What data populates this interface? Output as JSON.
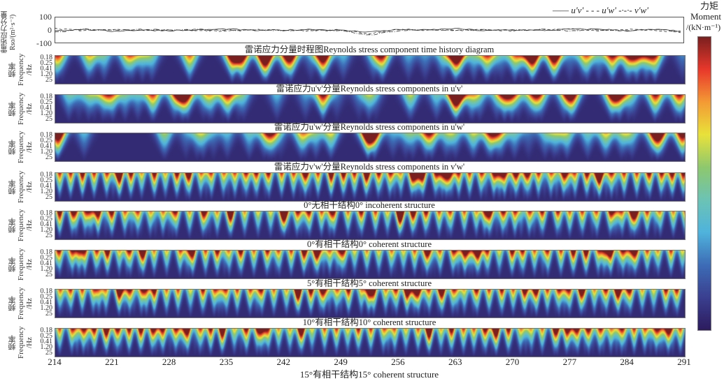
{
  "chart_data": [
    {
      "type": "line",
      "ylabel": "雷诺应力分量 Rso/(m²·s⁻²)",
      "ylim": [
        -100,
        100
      ],
      "yticks": [
        "100",
        "0",
        "-100"
      ],
      "xlim": [
        214,
        291
      ],
      "legend": {
        "placement": "top-right",
        "entries": [
          {
            "name": "u'v'",
            "style": "solid"
          },
          {
            "name": "u'w'",
            "style": "dashed"
          },
          {
            "name": "v'w'",
            "style": "dash-dot"
          }
        ]
      },
      "series": [
        {
          "name": "u'v'",
          "x": [
            214,
            217.5,
            221,
            224.5,
            228,
            231.5,
            235,
            238.5,
            242,
            245.5,
            249,
            252.5,
            256,
            259.5,
            263,
            266.5,
            270,
            273.5,
            277,
            280.5,
            284,
            287.5,
            291
          ],
          "y": [
            -5,
            5,
            -10,
            0,
            -5,
            0,
            8,
            -4,
            -2,
            6,
            -3,
            -15,
            4,
            0,
            12,
            -6,
            2,
            -4,
            6,
            8,
            -6,
            4,
            -10
          ]
        },
        {
          "name": "u'w'",
          "x": [
            214,
            217.5,
            221,
            224.5,
            228,
            231.5,
            235,
            238.5,
            242,
            245.5,
            249,
            252.5,
            256,
            259.5,
            263,
            266.5,
            270,
            273.5,
            277,
            280.5,
            284,
            287.5,
            291
          ],
          "y": [
            10,
            -5,
            4,
            -3,
            2,
            -6,
            -10,
            3,
            -4,
            -8,
            2,
            -30,
            5,
            -2,
            -4,
            3,
            -5,
            2,
            10,
            -6,
            5,
            -4,
            -20
          ]
        },
        {
          "name": "v'w'",
          "x": [
            214,
            217.5,
            221,
            224.5,
            228,
            231.5,
            235,
            238.5,
            242,
            245.5,
            249,
            252.5,
            256,
            259.5,
            263,
            266.5,
            270,
            273.5,
            277,
            280.5,
            284,
            287.5,
            291
          ],
          "y": [
            -20,
            6,
            -3,
            5,
            -2,
            4,
            -2,
            2,
            -5,
            4,
            -8,
            -40,
            -6,
            3,
            -5,
            2,
            -3,
            5,
            -4,
            3,
            -5,
            6,
            -15
          ]
        }
      ]
    },
    {
      "type": "heatmap",
      "ylabel": "频率 Frequency /Hz",
      "yticks": [
        "0.18",
        "0.25",
        "0.41",
        "1.20",
        "25"
      ],
      "xlim": [
        214,
        291
      ],
      "colorbar": {
        "title_cn": "力矩",
        "title_en": "Moment",
        "unit": "/(kN·m⁻¹)",
        "colormap": [
          "#2d1b5e",
          "#3a3f8f",
          "#3d6cb6",
          "#4fb3dc",
          "#6cc3b4",
          "#8ec86d",
          "#e8e23a",
          "#f39a35",
          "#e8382b",
          "#7a1f1f"
        ]
      },
      "panels": [
        {
          "caption": "雷诺应力分量时程图Reynolds stress component time history diagram",
          "peaks": [
            [
              218,
              0.5
            ],
            [
              230.4,
              0.8
            ],
            [
              235.6,
              1.0
            ],
            [
              236.8,
              0.95
            ],
            [
              239.8,
              0.8
            ],
            [
              246.7,
              0.9
            ],
            [
              254,
              0.75
            ],
            [
              263,
              0.8
            ],
            [
              272.3,
              0.9
            ],
            [
              274.9,
              0.95
            ],
            [
              279,
              0.6
            ],
            [
              287.3,
              0.8
            ]
          ]
        },
        {
          "caption": "雷诺应力u'v'分量Reynolds stress components in u'v'",
          "peaks": [
            [
              221,
              0.5
            ],
            [
              226,
              0.5
            ],
            [
              235.1,
              0.8
            ],
            [
              246.7,
              1.0
            ],
            [
              263,
              0.95
            ],
            [
              268.9,
              0.7
            ],
            [
              277,
              0.75
            ],
            [
              283,
              0.6
            ],
            [
              287.3,
              0.85
            ]
          ]
        },
        {
          "caption": "雷诺应力u'w'分量Reynolds stress components in u'w'",
          "peaks": [
            [
              214.3,
              1.0
            ],
            [
              244,
              0.45
            ],
            [
              252.2,
              1.0
            ],
            [
              253,
              0.8
            ],
            [
              260,
              0.4
            ],
            [
              290.7,
              1.0
            ]
          ]
        },
        {
          "caption": "雷诺应力v'w'分量Reynolds stress components in v'w'",
          "period": 1.45,
          "amplitude": 0.95
        },
        {
          "caption": "0°无相干结构0° incoherent structure",
          "period": 1.6,
          "amplitude": 0.9
        },
        {
          "caption": "0°有相干结构0° coherent structure",
          "period": 1.5,
          "amplitude": 0.9
        },
        {
          "caption": "5°有相干结构5° coherent structure",
          "period": 1.45,
          "amplitude": 0.9
        },
        {
          "caption": "10°有相干结构10° coherent structure",
          "period": 1.4,
          "amplitude": 0.9
        }
      ],
      "xticks": [
        "214",
        "221",
        "228",
        "235",
        "242",
        "249",
        "256",
        "263",
        "270",
        "277",
        "284",
        "291"
      ],
      "xlabel": "15°有相干结构15° coherent structure"
    }
  ]
}
